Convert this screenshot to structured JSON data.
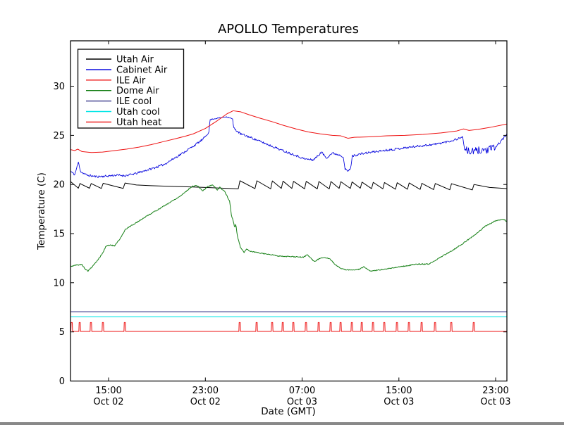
{
  "figure": {
    "background": "#ffffff",
    "frame_color": "#000000"
  },
  "chart_data": {
    "type": "line",
    "title": "APOLLO Temperatures",
    "xlabel": "Date (GMT)",
    "ylabel": "Temperature (C)",
    "x_unit": "hours since Oct 02 00:00 GMT",
    "xlim": [
      11.85,
      47.93
    ],
    "ylim": [
      0,
      34.62
    ],
    "grid": false,
    "y_ticks": [
      0,
      5,
      10,
      15,
      20,
      25,
      30
    ],
    "x_ticks": [
      {
        "t": 15,
        "time": "15:00",
        "date": "Oct 02"
      },
      {
        "t": 23,
        "time": "23:00",
        "date": "Oct 02"
      },
      {
        "t": 31,
        "time": "07:00",
        "date": "Oct 03"
      },
      {
        "t": 39,
        "time": "15:00",
        "date": "Oct 03"
      },
      {
        "t": 47,
        "time": "23:00",
        "date": "Oct 03"
      }
    ],
    "legend": {
      "position": "upper-left"
    },
    "series": [
      {
        "name": "Utah Air",
        "color": "#000000",
        "lw": 1,
        "points": [
          [
            11.85,
            20.3
          ],
          [
            12.5,
            19.62
          ],
          [
            12.63,
            20.1
          ],
          [
            13.42,
            19.62
          ],
          [
            13.56,
            20.1
          ],
          [
            14.4,
            19.6
          ],
          [
            14.55,
            20.12
          ],
          [
            16.2,
            19.6
          ],
          [
            16.36,
            20.15
          ],
          [
            17.3,
            19.95
          ],
          [
            18.5,
            19.88
          ],
          [
            20.0,
            19.82
          ],
          [
            21.5,
            19.76
          ],
          [
            23.0,
            19.7
          ],
          [
            24.5,
            19.62
          ],
          [
            25.72,
            19.56
          ],
          [
            25.86,
            20.38
          ],
          [
            27.1,
            19.58
          ],
          [
            27.26,
            20.38
          ],
          [
            28.4,
            19.56
          ],
          [
            28.54,
            20.36
          ],
          [
            29.28,
            19.6
          ],
          [
            29.42,
            20.34
          ],
          [
            30.15,
            19.6
          ],
          [
            30.29,
            20.32
          ],
          [
            31.2,
            19.56
          ],
          [
            31.34,
            20.32
          ],
          [
            32.25,
            19.55
          ],
          [
            32.39,
            20.3
          ],
          [
            33.24,
            19.55
          ],
          [
            33.38,
            20.3
          ],
          [
            34.06,
            19.6
          ],
          [
            34.2,
            20.28
          ],
          [
            34.99,
            19.6
          ],
          [
            35.13,
            20.26
          ],
          [
            35.81,
            19.62
          ],
          [
            35.95,
            20.24
          ],
          [
            36.74,
            19.58
          ],
          [
            36.88,
            20.22
          ],
          [
            37.67,
            19.56
          ],
          [
            37.81,
            20.2
          ],
          [
            38.72,
            19.52
          ],
          [
            38.86,
            20.18
          ],
          [
            39.71,
            19.52
          ],
          [
            39.85,
            20.16
          ],
          [
            40.76,
            19.5
          ],
          [
            40.9,
            20.12
          ],
          [
            41.87,
            19.48
          ],
          [
            42.01,
            20.1
          ],
          [
            43.21,
            19.46
          ],
          [
            43.35,
            20.08
          ],
          [
            45.07,
            19.45
          ],
          [
            45.21,
            20.0
          ],
          [
            46.5,
            19.7
          ],
          [
            47.93,
            19.58
          ]
        ]
      },
      {
        "name": "Cabinet Air",
        "color": "#0000dd",
        "lw": 0.85,
        "seed": 11,
        "noise": [
          [
            11.85,
            23.3,
            0.11
          ],
          [
            23.38,
            25.26,
            0.05
          ],
          [
            25.33,
            44.4,
            0.11
          ],
          [
            44.45,
            46.95,
            0.4
          ],
          [
            46.95,
            47.93,
            0.12
          ]
        ],
        "points": [
          [
            11.85,
            21.35
          ],
          [
            12.2,
            21.0
          ],
          [
            12.5,
            22.25
          ],
          [
            12.7,
            21.3
          ],
          [
            13.2,
            20.95
          ],
          [
            14.0,
            20.8
          ],
          [
            14.8,
            20.85
          ],
          [
            15.6,
            20.95
          ],
          [
            16.4,
            20.9
          ],
          [
            17.2,
            21.1
          ],
          [
            18.0,
            21.4
          ],
          [
            18.8,
            21.7
          ],
          [
            19.6,
            22.05
          ],
          [
            20.4,
            22.65
          ],
          [
            21.2,
            23.25
          ],
          [
            22.0,
            23.9
          ],
          [
            22.8,
            24.6
          ],
          [
            23.2,
            25.2
          ],
          [
            23.3,
            25.4
          ],
          [
            23.38,
            26.6
          ],
          [
            23.8,
            26.7
          ],
          [
            24.3,
            26.8
          ],
          [
            24.7,
            26.9
          ],
          [
            25.0,
            26.8
          ],
          [
            25.26,
            26.65
          ],
          [
            25.33,
            25.75
          ],
          [
            25.9,
            25.15
          ],
          [
            26.6,
            24.85
          ],
          [
            27.5,
            24.4
          ],
          [
            28.5,
            23.9
          ],
          [
            29.5,
            23.4
          ],
          [
            30.4,
            23.0
          ],
          [
            31.2,
            22.6
          ],
          [
            31.9,
            22.5
          ],
          [
            32.3,
            22.9
          ],
          [
            32.6,
            23.3
          ],
          [
            33.0,
            22.7
          ],
          [
            33.5,
            23.2
          ],
          [
            34.1,
            23.0
          ],
          [
            34.4,
            22.85
          ],
          [
            34.55,
            21.55
          ],
          [
            34.8,
            21.35
          ],
          [
            35.0,
            21.6
          ],
          [
            35.15,
            22.9
          ],
          [
            35.8,
            23.1
          ],
          [
            36.8,
            23.3
          ],
          [
            38.0,
            23.5
          ],
          [
            39.3,
            23.7
          ],
          [
            40.6,
            23.9
          ],
          [
            42.0,
            24.1
          ],
          [
            43.2,
            24.4
          ],
          [
            44.0,
            24.7
          ],
          [
            44.25,
            24.9
          ],
          [
            44.45,
            23.5
          ],
          [
            45.0,
            23.3
          ],
          [
            45.7,
            23.5
          ],
          [
            46.4,
            23.5
          ],
          [
            47.0,
            23.8
          ],
          [
            47.5,
            24.5
          ],
          [
            47.93,
            25.1
          ]
        ]
      },
      {
        "name": "ILE Air",
        "color": "#ee1111",
        "lw": 1,
        "points": [
          [
            11.85,
            23.55
          ],
          [
            12.2,
            23.45
          ],
          [
            12.45,
            23.6
          ],
          [
            12.8,
            23.35
          ],
          [
            13.6,
            23.25
          ],
          [
            14.5,
            23.3
          ],
          [
            15.5,
            23.45
          ],
          [
            16.5,
            23.6
          ],
          [
            17.5,
            23.8
          ],
          [
            18.5,
            24.05
          ],
          [
            19.5,
            24.35
          ],
          [
            20.5,
            24.65
          ],
          [
            21.3,
            24.9
          ],
          [
            22.0,
            25.15
          ],
          [
            23.0,
            25.7
          ],
          [
            24.0,
            26.5
          ],
          [
            24.8,
            27.2
          ],
          [
            25.3,
            27.5
          ],
          [
            25.9,
            27.4
          ],
          [
            26.6,
            27.1
          ],
          [
            27.5,
            26.75
          ],
          [
            28.5,
            26.4
          ],
          [
            29.5,
            26.0
          ],
          [
            30.5,
            25.65
          ],
          [
            31.5,
            25.35
          ],
          [
            32.5,
            25.15
          ],
          [
            33.5,
            25.0
          ],
          [
            34.2,
            24.95
          ],
          [
            34.8,
            24.7
          ],
          [
            35.3,
            24.8
          ],
          [
            36.5,
            24.85
          ],
          [
            38.0,
            24.95
          ],
          [
            39.5,
            25.0
          ],
          [
            41.0,
            25.1
          ],
          [
            42.5,
            25.25
          ],
          [
            43.8,
            25.45
          ],
          [
            44.35,
            25.65
          ],
          [
            44.8,
            25.5
          ],
          [
            45.5,
            25.6
          ],
          [
            46.5,
            25.8
          ],
          [
            47.93,
            26.15
          ]
        ]
      },
      {
        "name": "Dome Air",
        "color": "#168016",
        "lw": 1,
        "seed": 5,
        "noise": [
          [
            11.85,
            47.93,
            0.05
          ]
        ],
        "points": [
          [
            11.85,
            11.65
          ],
          [
            12.3,
            11.8
          ],
          [
            12.8,
            11.85
          ],
          [
            13.1,
            11.35
          ],
          [
            13.3,
            11.2
          ],
          [
            13.7,
            11.7
          ],
          [
            14.1,
            12.3
          ],
          [
            14.5,
            13.0
          ],
          [
            14.8,
            13.75
          ],
          [
            15.1,
            13.85
          ],
          [
            15.5,
            13.75
          ],
          [
            15.9,
            14.4
          ],
          [
            16.4,
            15.45
          ],
          [
            17.4,
            16.2
          ],
          [
            18.3,
            16.9
          ],
          [
            19.3,
            17.6
          ],
          [
            20.3,
            18.35
          ],
          [
            20.9,
            18.8
          ],
          [
            21.5,
            19.4
          ],
          [
            21.9,
            19.8
          ],
          [
            22.3,
            19.9
          ],
          [
            22.8,
            19.35
          ],
          [
            23.2,
            19.8
          ],
          [
            23.6,
            19.95
          ],
          [
            24.0,
            19.45
          ],
          [
            24.2,
            19.7
          ],
          [
            24.6,
            19.3
          ],
          [
            25.0,
            18.3
          ],
          [
            25.15,
            16.9
          ],
          [
            25.3,
            16.3
          ],
          [
            25.42,
            15.6
          ],
          [
            25.52,
            16.0
          ],
          [
            25.62,
            14.9
          ],
          [
            25.9,
            13.6
          ],
          [
            26.2,
            13.1
          ],
          [
            26.4,
            13.45
          ],
          [
            26.7,
            13.2
          ],
          [
            27.2,
            13.1
          ],
          [
            28.2,
            12.9
          ],
          [
            29.2,
            12.7
          ],
          [
            30.2,
            12.65
          ],
          [
            31.1,
            12.6
          ],
          [
            31.45,
            12.85
          ],
          [
            32.0,
            12.15
          ],
          [
            32.5,
            12.5
          ],
          [
            32.8,
            12.6
          ],
          [
            33.3,
            12.4
          ],
          [
            33.7,
            11.9
          ],
          [
            34.2,
            11.45
          ],
          [
            34.7,
            11.3
          ],
          [
            35.3,
            11.3
          ],
          [
            35.8,
            11.4
          ],
          [
            36.1,
            11.65
          ],
          [
            36.45,
            11.3
          ],
          [
            36.7,
            11.15
          ],
          [
            37.3,
            11.3
          ],
          [
            37.9,
            11.4
          ],
          [
            38.9,
            11.6
          ],
          [
            39.8,
            11.75
          ],
          [
            40.4,
            11.9
          ],
          [
            41.5,
            11.9
          ],
          [
            42.3,
            12.5
          ],
          [
            43.3,
            13.2
          ],
          [
            44.3,
            14.0
          ],
          [
            45.3,
            14.9
          ],
          [
            46.2,
            15.8
          ],
          [
            47.0,
            16.3
          ],
          [
            47.4,
            16.4
          ],
          [
            47.7,
            16.45
          ],
          [
            47.93,
            16.2
          ]
        ]
      },
      {
        "name": "ILE cool",
        "color": "#343488",
        "lw": 1,
        "points": [
          [
            11.85,
            7.05
          ],
          [
            47.93,
            7.05
          ]
        ]
      },
      {
        "name": "Utah cool",
        "color": "#00e5e5",
        "lw": 1,
        "points": [
          [
            11.85,
            6.55
          ],
          [
            47.93,
            6.55
          ]
        ]
      },
      {
        "name": "Utah heat",
        "color": "#ee1111",
        "lw": 1,
        "baseline": 5.05,
        "spike_peak": 5.95,
        "spike_times": [
          11.95,
          12.61,
          13.54,
          14.53,
          16.34,
          25.84,
          27.24,
          28.52,
          29.4,
          30.27,
          31.32,
          32.37,
          33.36,
          34.18,
          35.11,
          35.93,
          36.86,
          37.79,
          38.84,
          39.83,
          40.88,
          41.99,
          43.33,
          45.19
        ]
      }
    ]
  }
}
